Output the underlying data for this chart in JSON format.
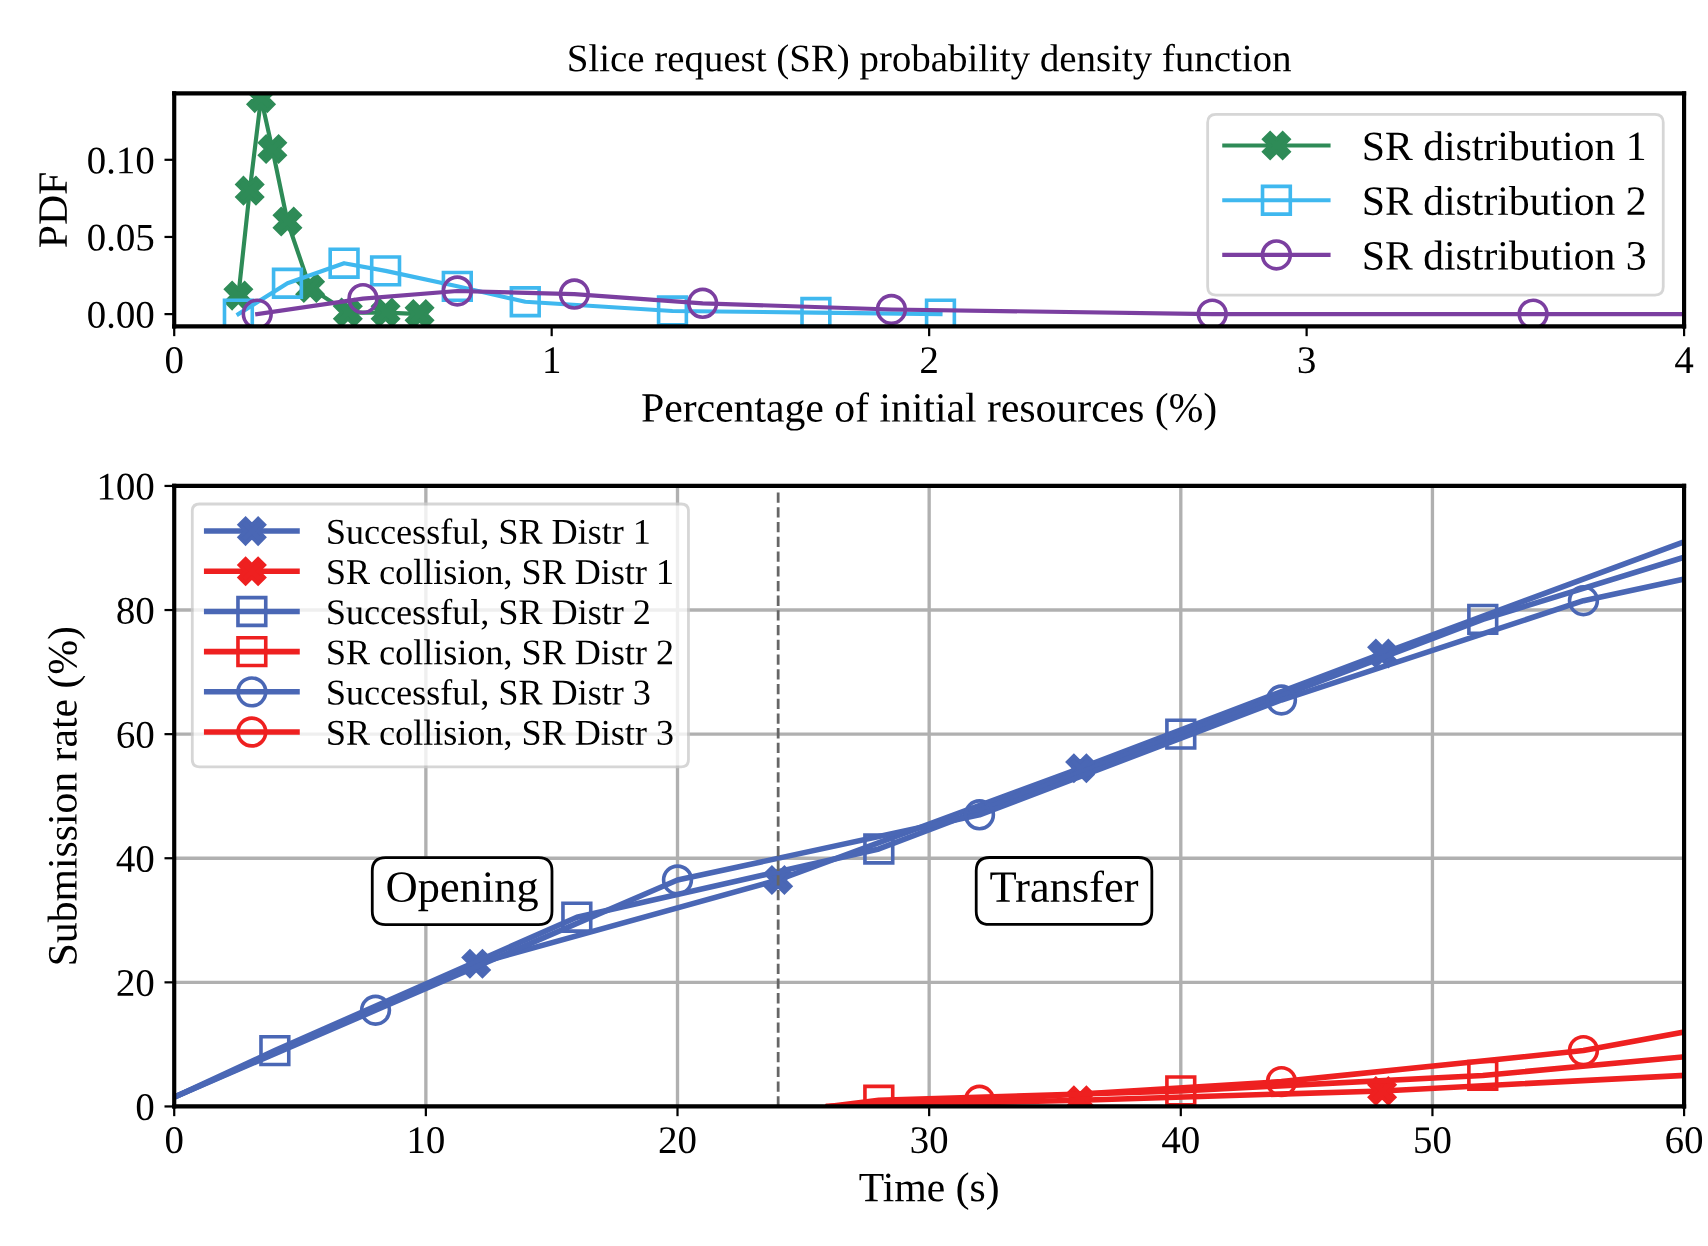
{
  "chart_data": [
    {
      "type": "line",
      "title": "Slice request (SR) probability density function",
      "xlabel": "Percentage of initial resources (%)",
      "ylabel": "PDF",
      "xlim": [
        0,
        4
      ],
      "xticks": [
        0,
        1,
        2,
        3,
        4
      ],
      "ylim": [
        -0.008,
        0.143
      ],
      "yticks": [
        {
          "value": 0,
          "label": "0.00"
        },
        {
          "value": 0.05,
          "label": "0.05"
        },
        {
          "value": 0.1,
          "label": "0.10"
        }
      ],
      "grid": false,
      "legend": "top right",
      "series": [
        {
          "name": "SR distribution 1",
          "color": "#2e8b57",
          "marker": "cross",
          "x": [
            0.17,
            0.2,
            0.23,
            0.26,
            0.3,
            0.36,
            0.46,
            0.56,
            0.65
          ],
          "values": [
            0.012,
            0.08,
            0.14,
            0.107,
            0.06,
            0.017,
            0.001,
            0.001,
            0.0
          ]
        },
        {
          "name": "SR distribution 2",
          "color": "#3fb8ef",
          "marker": "square",
          "x": [
            0.17,
            0.3,
            0.45,
            0.56,
            0.75,
            0.93,
            1.32,
            1.7,
            2.03
          ],
          "values": [
            0.0,
            0.02,
            0.033,
            0.028,
            0.018,
            0.008,
            0.002,
            0.001,
            0.0
          ]
        },
        {
          "name": "SR distribution 3",
          "color": "#7b3fa0",
          "marker": "circle",
          "x": [
            0.22,
            0.5,
            0.75,
            1.06,
            1.4,
            1.9,
            2.75,
            3.6,
            4.0
          ],
          "values": [
            0.0,
            0.01,
            0.015,
            0.013,
            0.007,
            0.003,
            0.0,
            0.0,
            0.0
          ]
        }
      ]
    },
    {
      "type": "line",
      "xlabel": "Time (s)",
      "ylabel": "Submission rate (%)",
      "xlim": [
        0,
        60
      ],
      "xticks": [
        0,
        10,
        20,
        30,
        40,
        50,
        60
      ],
      "ylim": [
        0,
        100
      ],
      "yticks": [
        0,
        20,
        40,
        60,
        80,
        100
      ],
      "grid": true,
      "legend": "top left",
      "annotations": [
        "Opening",
        "Transfer"
      ],
      "ref_lines": [
        {
          "axis": "x",
          "value": 24,
          "color": "#666666",
          "line_style": "dashed"
        }
      ],
      "series": [
        {
          "name": "Successful, SR Distr 1",
          "color": "#4a67b5",
          "marker": "cross",
          "x": [
            0,
            12,
            24,
            36,
            48,
            60
          ],
          "values": [
            1.5,
            23,
            36.5,
            54.5,
            73,
            91
          ]
        },
        {
          "name": "SR collision, SR Distr 1",
          "color": "#ee2020",
          "marker": "cross",
          "x": [
            26,
            36,
            48,
            60
          ],
          "values": [
            0,
            1,
            2.5,
            5
          ]
        },
        {
          "name": "Successful, SR Distr 2",
          "color": "#4a67b5",
          "marker": "square",
          "x": [
            0,
            4,
            16,
            28,
            40,
            52,
            60
          ],
          "values": [
            1.5,
            9,
            30.5,
            41.5,
            60,
            78.5,
            88.5
          ]
        },
        {
          "name": "SR collision, SR Distr 2",
          "color": "#ee2020",
          "marker": "square",
          "x": [
            26,
            28,
            40,
            52,
            60
          ],
          "values": [
            0,
            1,
            2.5,
            5,
            8
          ]
        },
        {
          "name": "Successful, SR Distr 3",
          "color": "#4a67b5",
          "marker": "circle",
          "x": [
            0,
            8,
            20,
            32,
            44,
            56,
            60
          ],
          "values": [
            1.5,
            15.5,
            36.5,
            47,
            65.5,
            81.5,
            85
          ]
        },
        {
          "name": "SR collision, SR Distr 3",
          "color": "#ee2020",
          "marker": "circle",
          "x": [
            26,
            32,
            44,
            56,
            60
          ],
          "values": [
            0,
            1,
            4,
            9,
            12
          ]
        }
      ]
    }
  ]
}
